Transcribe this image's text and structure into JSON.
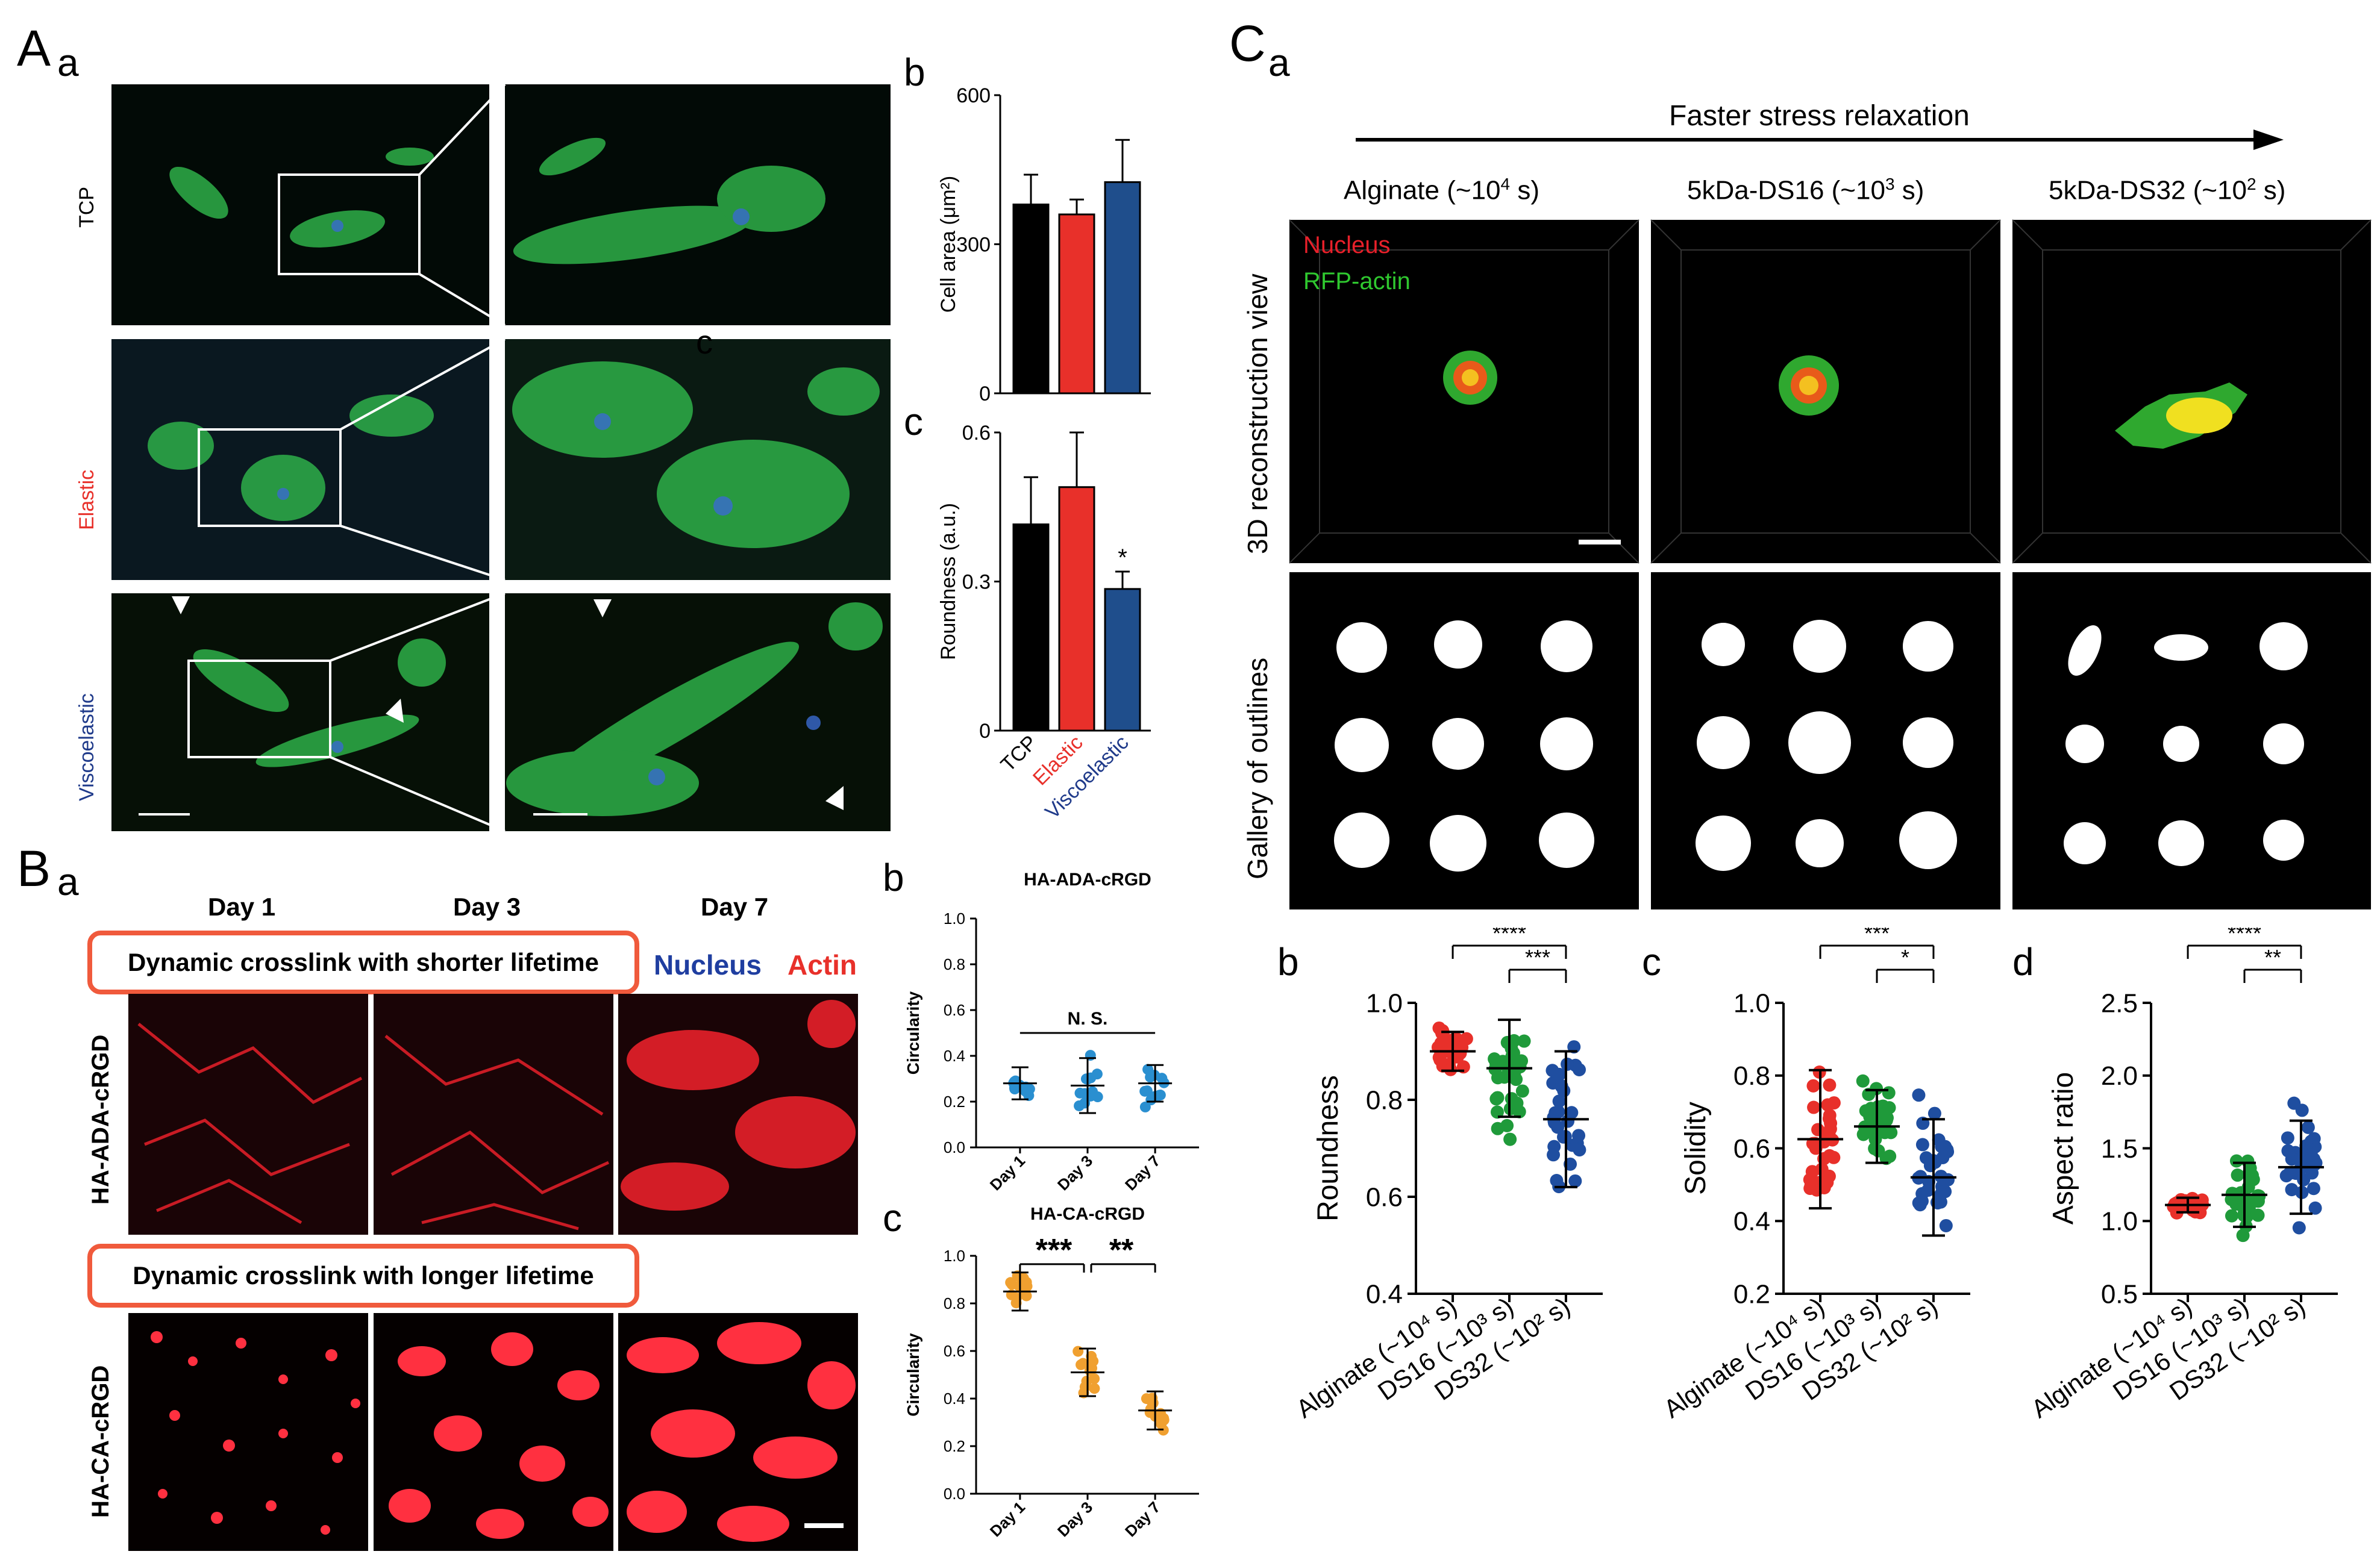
{
  "letters": {
    "A": "A",
    "Aa": "a",
    "Ab": "b",
    "Ac": "c",
    "Ac_stray": "c",
    "B": "B",
    "Ba": "a",
    "Bb": "b",
    "Bc": "c",
    "C": "C",
    "Ca": "a",
    "Cb": "b",
    "Cc": "c",
    "Cd": "d"
  },
  "panelA": {
    "rows": [
      {
        "label": "TCP",
        "color": "#000000"
      },
      {
        "label": "Elastic",
        "color": "#e8302a"
      },
      {
        "label": "Viscoelastic",
        "color": "#1f3a8a"
      }
    ]
  },
  "panelB": {
    "days": [
      "Day 1",
      "Day 3",
      "Day 7"
    ],
    "box1": "Dynamic crosslink with shorter lifetime",
    "box2": "Dynamic crosslink with longer lifetime",
    "legend_nucleus": "Nucleus",
    "legend_actin": "Actin",
    "row1_label": "HA-ADA-cRGD",
    "row2_label": "HA-CA-cRGD"
  },
  "panelC": {
    "arrow_label": "Faster stress relaxation",
    "col_titles": [
      "Alginate (~10<sup>4</sup> s)",
      "5kDa-DS16 (~10<sup>3</sup> s)",
      "5kDa-DS32 (~10<sup>2</sup> s)"
    ],
    "col_titles_text": [
      "Alginate (~10",
      "4",
      " s)",
      "5kDa-DS16 (~10",
      "3",
      " s)",
      "5kDa-DS32 (~10",
      "2",
      " s)"
    ],
    "row1_label": "3D reconstruction view",
    "row2_label": "Gallery of outlines",
    "legend_nucleus": "Nucleus",
    "legend_actin": "RFP-actin"
  },
  "chart_data": [
    {
      "id": "Ab",
      "type": "bar",
      "categories": [
        "TCP",
        "Elastic",
        "Viscoelastic"
      ],
      "values": [
        380,
        360,
        425
      ],
      "errors": [
        60,
        30,
        85
      ],
      "colors": [
        "#000000",
        "#e8302a",
        "#1f4e8c"
      ],
      "ylabel": "Cell area (μm²)",
      "ylim": [
        0,
        600
      ],
      "yticks": [
        0,
        300,
        600
      ]
    },
    {
      "id": "Ac",
      "type": "bar",
      "categories": [
        "TCP",
        "Elastic",
        "Viscoelastic"
      ],
      "values": [
        0.415,
        0.49,
        0.285
      ],
      "errors": [
        0.095,
        0.11,
        0.035
      ],
      "colors": [
        "#000000",
        "#e8302a",
        "#1f4e8c"
      ],
      "ylabel": "Roundness (a.u.)",
      "ylim": [
        0,
        0.6
      ],
      "yticks": [
        0,
        0.3,
        0.6
      ],
      "tick_labels": [
        "0",
        "0.3",
        "0.6"
      ],
      "annotation": "*"
    },
    {
      "id": "Bb",
      "type": "scatter",
      "title": "HA-ADA-cRGD",
      "categories": [
        "Day 1",
        "Day 3",
        "Day 7"
      ],
      "means": [
        0.28,
        0.27,
        0.28
      ],
      "sd": [
        0.07,
        0.12,
        0.08
      ],
      "ylabel": "Circularity",
      "ylim": [
        0,
        1.0
      ],
      "yticks": [
        0,
        0.2,
        0.4,
        0.6,
        0.8,
        1.0
      ],
      "tick_labels": [
        "0.0",
        "0.2",
        "0.4",
        "0.6",
        "0.8",
        "1.0"
      ],
      "color": "#2a8fd0",
      "significance": "N. S."
    },
    {
      "id": "Bc",
      "type": "scatter",
      "title": "HA-CA-cRGD",
      "categories": [
        "Day 1",
        "Day 3",
        "Day 7"
      ],
      "means": [
        0.85,
        0.51,
        0.35
      ],
      "sd": [
        0.08,
        0.1,
        0.08
      ],
      "ylabel": "Circularity",
      "ylim": [
        0,
        1.0
      ],
      "yticks": [
        0,
        0.2,
        0.4,
        0.6,
        0.8,
        1.0
      ],
      "tick_labels": [
        "0.0",
        "0.2",
        "0.4",
        "0.6",
        "0.8",
        "1.0"
      ],
      "color": "#f0a030",
      "sig1": "***",
      "sig2": "**"
    },
    {
      "id": "Cb",
      "type": "scatter",
      "categories": [
        "Alginate (~10⁴ s)",
        "DS16 (~10³ s)",
        "DS32 (~10² s)"
      ],
      "means": [
        0.9,
        0.865,
        0.76
      ],
      "sd": [
        0.04,
        0.1,
        0.14
      ],
      "ylabel": "Roundness",
      "ylim": [
        0.4,
        1.0
      ],
      "yticks": [
        0.4,
        0.6,
        0.8,
        1.0
      ],
      "tick_labels": [
        "0.4",
        "0.6",
        "0.8",
        "1.0"
      ],
      "colors": [
        "#e8302a",
        "#1f9a3a",
        "#1f4ea0"
      ],
      "sig_long": "****",
      "sig_short": "***"
    },
    {
      "id": "Cc",
      "type": "scatter",
      "categories": [
        "Alginate (~10⁴ s)",
        "DS16 (~10³ s)",
        "DS32 (~10² s)"
      ],
      "means": [
        0.625,
        0.66,
        0.52
      ],
      "sd": [
        0.19,
        0.1,
        0.16
      ],
      "ylabel": "Solidity",
      "ylim": [
        0.2,
        1.0
      ],
      "yticks": [
        0.2,
        0.4,
        0.6,
        0.8,
        1.0
      ],
      "tick_labels": [
        "0.2",
        "0.4",
        "0.6",
        "0.8",
        "1.0"
      ],
      "colors": [
        "#e8302a",
        "#1f9a3a",
        "#1f4ea0"
      ],
      "sig_long": "***",
      "sig_short": "*"
    },
    {
      "id": "Cd",
      "type": "scatter",
      "categories": [
        "Alginate (~10⁴ s)",
        "DS16 (~10³ s)",
        "DS32 (~10² s)"
      ],
      "means": [
        1.11,
        1.18,
        1.37
      ],
      "sd": [
        0.05,
        0.22,
        0.32
      ],
      "ylabel": "Aspect ratio",
      "ylim": [
        0.5,
        2.5
      ],
      "yticks": [
        0.5,
        1.0,
        1.5,
        2.0,
        2.5
      ],
      "tick_labels": [
        "0.5",
        "1.0",
        "1.5",
        "2.0",
        "2.5"
      ],
      "colors": [
        "#e8302a",
        "#1f9a3a",
        "#1f4ea0"
      ],
      "sig_long": "****",
      "sig_short": "**"
    }
  ]
}
